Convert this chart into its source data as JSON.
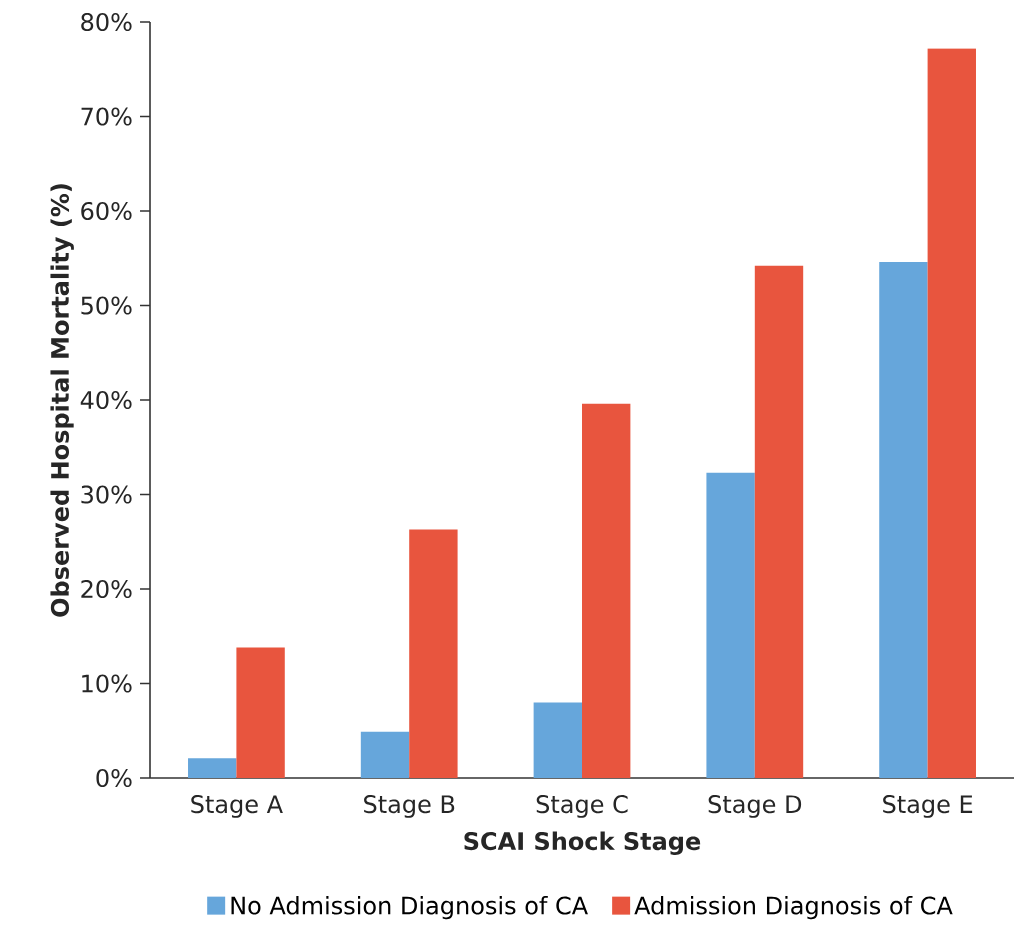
{
  "chart_data": {
    "type": "bar",
    "xlabel": "SCAI Shock Stage",
    "ylabel": "Observed Hospital Mortality (%)",
    "categories": [
      "Stage A",
      "Stage B",
      "Stage C",
      "Stage D",
      "Stage E"
    ],
    "series": [
      {
        "name": "No Admission Diagnosis of CA",
        "color": "#66a6db",
        "values": [
          2.1,
          4.9,
          8.0,
          32.3,
          54.6
        ]
      },
      {
        "name": "Admission Diagnosis of CA",
        "color": "#e8553e",
        "values": [
          13.8,
          26.3,
          39.6,
          54.2,
          77.2
        ]
      }
    ],
    "ylim": [
      0,
      80
    ],
    "yticks": [
      {
        "value": 0,
        "label": "0%"
      },
      {
        "value": 10,
        "label": "10%"
      },
      {
        "value": 20,
        "label": "20%"
      },
      {
        "value": 30,
        "label": "30%"
      },
      {
        "value": 40,
        "label": "40%"
      },
      {
        "value": 50,
        "label": "50%"
      },
      {
        "value": 60,
        "label": "60%"
      },
      {
        "value": 70,
        "label": "70%"
      },
      {
        "value": 80,
        "label": "80%"
      }
    ],
    "grid": false,
    "legend": "bottom"
  }
}
